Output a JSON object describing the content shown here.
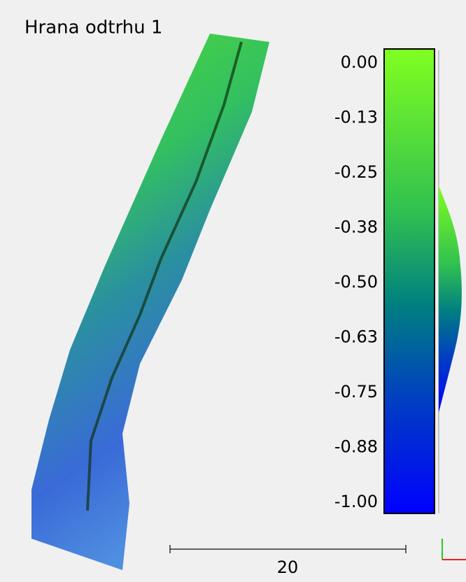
{
  "title": "Hrana odtrhu 1",
  "color_scale": {
    "ticks": [
      "0.00",
      "-0.13",
      "-0.25",
      "-0.38",
      "-0.50",
      "-0.63",
      "-0.75",
      "-0.88",
      "-1.00"
    ]
  },
  "scale_bar": {
    "label": "20"
  }
}
